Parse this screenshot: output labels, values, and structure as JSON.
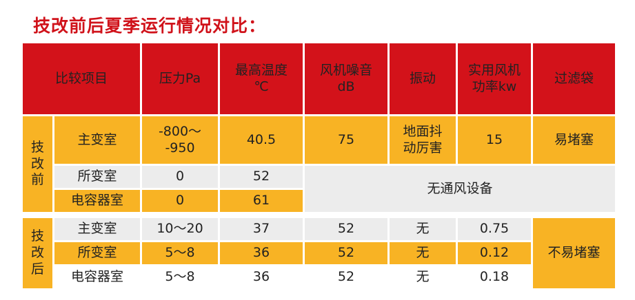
{
  "title": "技改前后夏季运行情况对比：",
  "headers": [
    "比较项目",
    "压力Pa",
    "最高温度\n℃",
    "风机噪音\ndB",
    "振动",
    "实用风机\n功率kw",
    "过滤袋"
  ],
  "groups": {
    "before": "技\n改\n前",
    "after": "技\n改\n后"
  },
  "before": {
    "rows": [
      {
        "room": "主变室",
        "pressure": "-800～\n-950",
        "temp": "40.5",
        "noise": "75",
        "vibration": "地面抖\n动厉害",
        "power": "15",
        "filter": "易堵塞"
      },
      {
        "room": "所变室",
        "pressure": "0",
        "temp": "52"
      },
      {
        "room": "电容器室",
        "pressure": "0",
        "temp": "61"
      }
    ],
    "no_fan_note": "无通风设备"
  },
  "after": {
    "rows": [
      {
        "room": "主变室",
        "pressure": "10～20",
        "temp": "37",
        "noise": "52",
        "vibration": "无",
        "power": "0.75"
      },
      {
        "room": "所变室",
        "pressure": "5～8",
        "temp": "36",
        "noise": "52",
        "vibration": "无",
        "power": "0.12"
      },
      {
        "room": "电容器室",
        "pressure": "5～8",
        "temp": "36",
        "noise": "52",
        "vibration": "无",
        "power": "0.18"
      }
    ],
    "filter": "不易堵塞"
  },
  "colors": {
    "header": "#d3121a",
    "yellow": "#f8b324",
    "grey": "#ececec",
    "title": "#d0121a"
  }
}
